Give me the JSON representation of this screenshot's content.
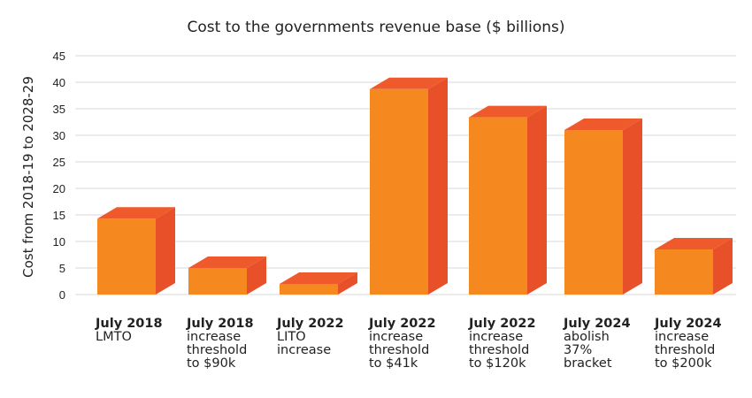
{
  "chart_data": {
    "type": "bar",
    "title": "Cost to the governments revenue base ($ billions)",
    "ylabel": "Cost from 2018-19 to 2028-29",
    "xlabel": "",
    "ylim": [
      0,
      45
    ],
    "yticks": [
      "0",
      "5",
      "10",
      "15",
      "20",
      "25",
      "30",
      "35",
      "40",
      "45"
    ],
    "grid": true,
    "categories": [
      {
        "line1": "July 2018",
        "line2": "LMTO"
      },
      {
        "line1": "July 2018",
        "line2": "increase\nthreshold\nto $90k"
      },
      {
        "line1": "July 2022",
        "line2": "LITO\nincrease"
      },
      {
        "line1": "July 2022",
        "line2": "increase\nthreshold\nto $41k"
      },
      {
        "line1": "July 2022",
        "line2": "increase\nthreshold\nto $120k"
      },
      {
        "line1": "July 2024",
        "line2": "abolish\n37%\nbracket"
      },
      {
        "line1": "July 2024",
        "line2": "increase\nthreshold\nto $200k"
      }
    ],
    "values": [
      14.3,
      5.0,
      2.0,
      38.7,
      33.4,
      31.0,
      8.5
    ]
  },
  "colors": {
    "bar_front": "#F5891F",
    "bar_top": "#EE5A2B",
    "bar_side": "#E8502A",
    "grid": "#E6E6E6",
    "text": "#222222"
  }
}
